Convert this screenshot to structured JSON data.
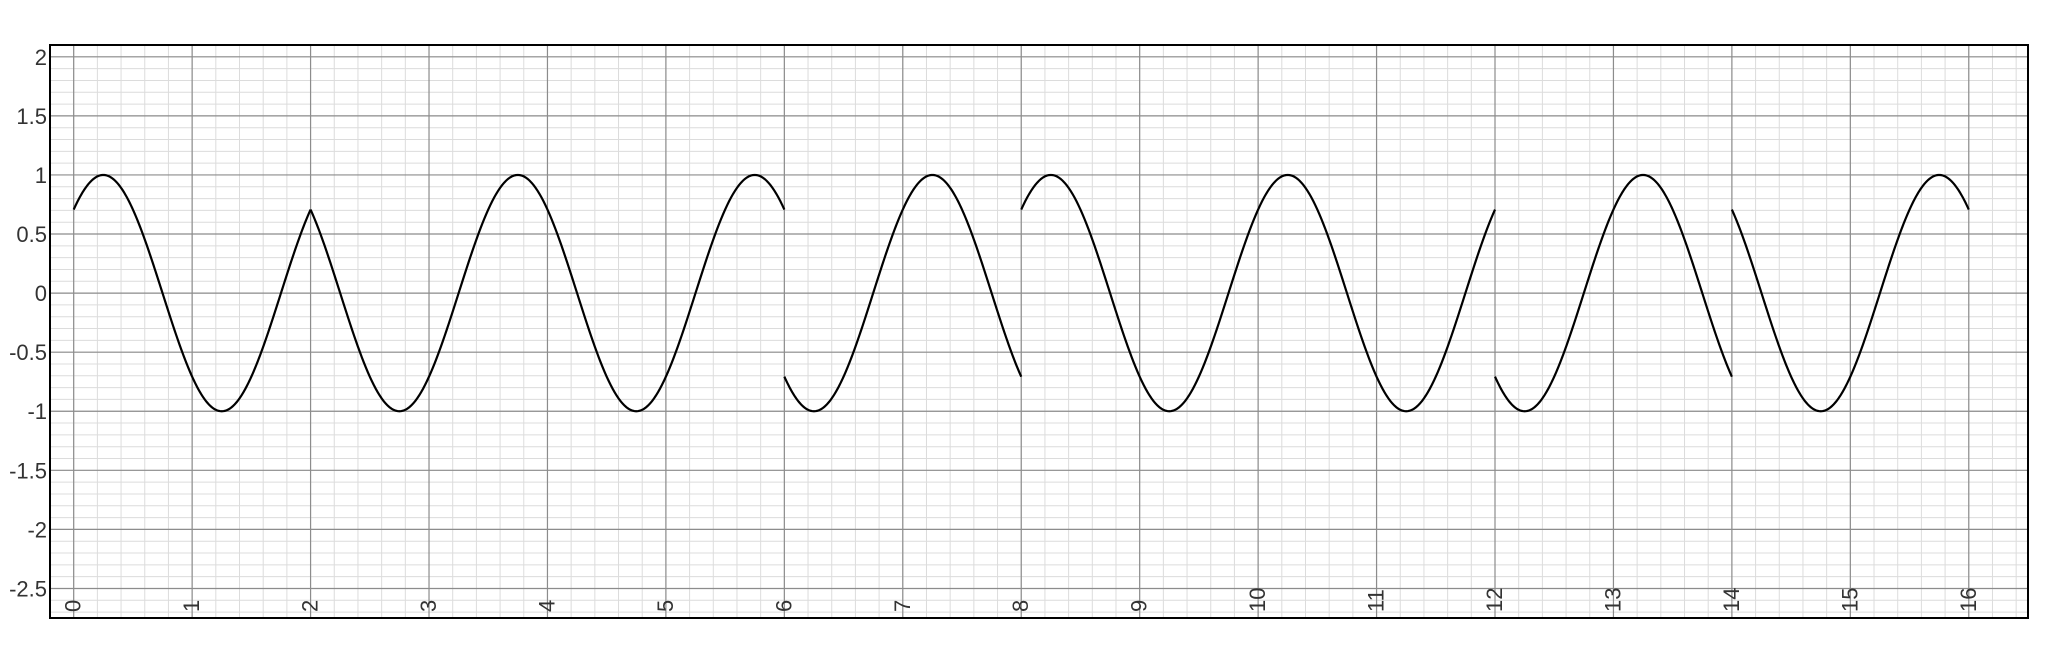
{
  "chart_data": {
    "type": "line",
    "title": "",
    "xlabel": "",
    "ylabel": "",
    "xlim": [
      -0.2,
      16.5
    ],
    "ylim": [
      -2.75,
      2.1
    ],
    "x_ticks": [
      "0",
      "1",
      "2",
      "3",
      "4",
      "5",
      "6",
      "7",
      "8",
      "9",
      "10",
      "11",
      "12",
      "13",
      "14",
      "15",
      "16"
    ],
    "y_ticks": [
      "2",
      "1.5",
      "1",
      "0.5",
      "0",
      "-0.5",
      "-1",
      "-1.5",
      "-2",
      "-2.5"
    ],
    "grid": true,
    "minor_grid_step": 0.2,
    "minor_grid_step_y": 0.1,
    "legend": "none",
    "series": [
      {
        "formula": "sin(pi*x + phase)",
        "segments": [
          {
            "x": [
              0,
              2
            ],
            "phase": 0.7854
          },
          {
            "x": [
              2,
              6
            ],
            "phase": 2.3562
          },
          {
            "x": [
              6,
              8
            ],
            "phase": 3.927
          },
          {
            "x": [
              8,
              12
            ],
            "phase": 0.7854
          },
          {
            "x": [
              12,
              14
            ],
            "phase": 3.927
          },
          {
            "x": [
              14,
              16
            ],
            "phase": 2.3562
          }
        ]
      }
    ],
    "colors": {
      "line": "#000000",
      "major_grid": "#8c8c8c",
      "minor_grid": "#dcdcdc",
      "frame": "#000000",
      "labels": "#333333"
    }
  }
}
